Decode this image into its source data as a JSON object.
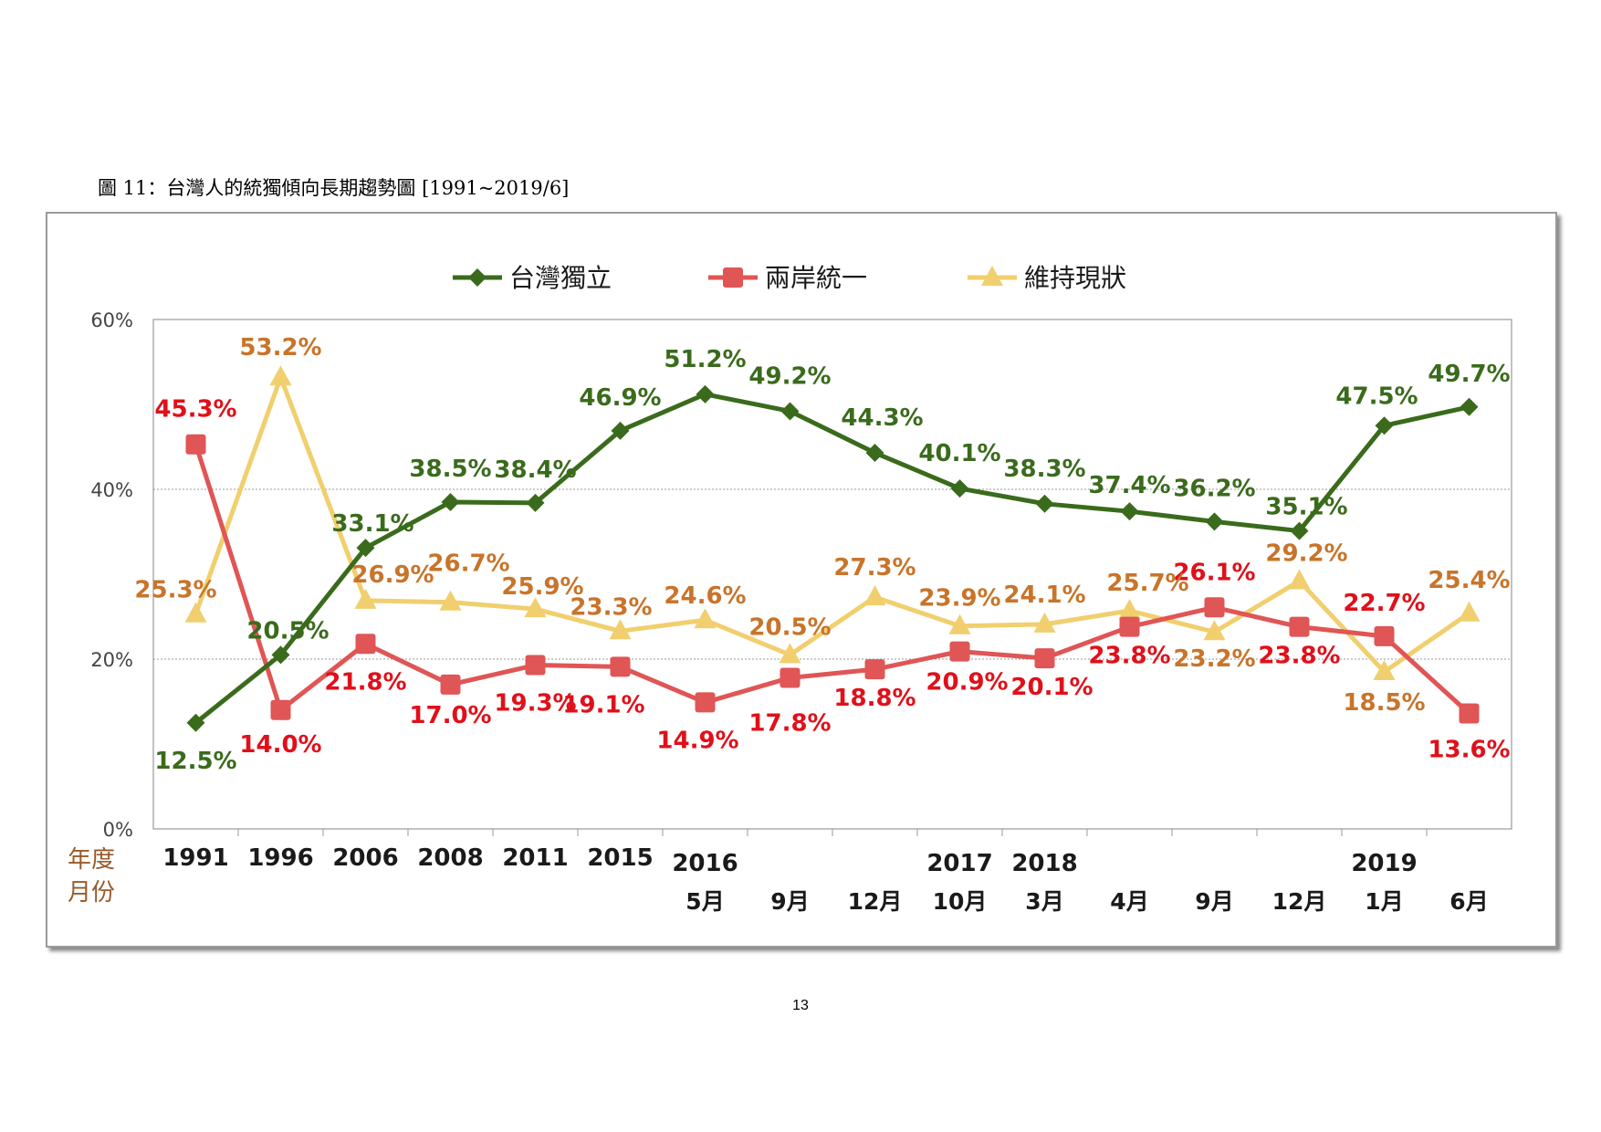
{
  "caption": "圖 11：台灣人的統獨傾向長期趨勢圖 [1991~2019/6]",
  "page_number": "13",
  "chart_data": {
    "type": "line",
    "title": "",
    "ylim": [
      0,
      60
    ],
    "y_ticks": [
      "0%",
      "20%",
      "40%",
      "60%"
    ],
    "grid": "horizontal dashed",
    "legend_position": "top-center",
    "row_labels": {
      "year": "年度",
      "month": "月份"
    },
    "years": [
      "1991",
      "1996",
      "2006",
      "2008",
      "2011",
      "2015",
      "2016",
      "",
      "",
      "2017",
      "2018",
      "",
      "",
      "",
      "2019",
      ""
    ],
    "months": [
      "",
      "",
      "",
      "",
      "",
      "",
      "5月",
      "9月",
      "12月",
      "10月",
      "3月",
      "4月",
      "9月",
      "12月",
      "1月",
      "6月"
    ],
    "series": [
      {
        "name": "台灣獨立",
        "color": "#3a6b1c",
        "label_color": "#3a6b1c",
        "marker": "diamond",
        "values": [
          12.5,
          20.5,
          33.1,
          38.5,
          38.4,
          46.9,
          51.2,
          49.2,
          44.3,
          40.1,
          38.3,
          37.4,
          36.2,
          35.1,
          47.5,
          49.7
        ],
        "labels": [
          "12.5%",
          "20.5%",
          "33.1%",
          "38.5%",
          "38.4%",
          "46.9%",
          "51.2%",
          "49.2%",
          "44.3%",
          "40.1%",
          "38.3%",
          "37.4%",
          "36.2%",
          "35.1%",
          "47.5%",
          "49.7%"
        ]
      },
      {
        "name": "兩岸統一",
        "color": "#e05555",
        "label_color": "#e0101a",
        "marker": "square",
        "values": [
          45.3,
          14.0,
          21.8,
          17.0,
          19.3,
          19.1,
          14.9,
          17.8,
          18.8,
          20.9,
          20.1,
          23.8,
          26.1,
          23.8,
          22.7,
          13.6
        ],
        "labels": [
          "45.3%",
          "14.0%",
          "21.8%",
          "17.0%",
          "19.3%",
          "19.1%",
          "14.9%",
          "17.8%",
          "18.8%",
          "20.9%",
          "20.1%",
          "23.8%",
          "26.1%",
          "23.8%",
          "22.7%",
          "13.6%"
        ]
      },
      {
        "name": "維持現狀",
        "color": "#f1cf6e",
        "label_color": "#c8742a",
        "marker": "triangle",
        "values": [
          25.3,
          53.2,
          26.9,
          26.7,
          25.9,
          23.3,
          24.6,
          20.5,
          27.3,
          23.9,
          24.1,
          25.7,
          23.2,
          29.2,
          18.5,
          25.4
        ],
        "labels": [
          "25.3%",
          "53.2%",
          "26.9%",
          "26.7%",
          "25.9%",
          "23.3%",
          "24.6%",
          "20.5%",
          "27.3%",
          "23.9%",
          "24.1%",
          "25.7%",
          "23.2%",
          "29.2%",
          "18.5%",
          "25.4%"
        ]
      }
    ]
  }
}
